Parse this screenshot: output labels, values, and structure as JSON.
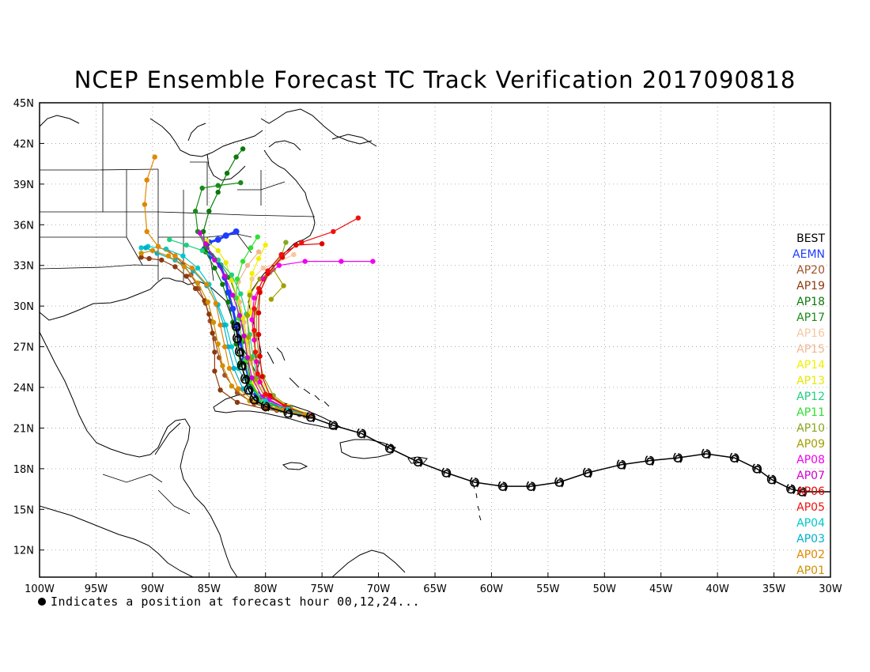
{
  "title": "NCEP Ensemble Forecast TC Track Verification 2017090818",
  "footnote": "Indicates a position at forecast hour 00,12,24...",
  "axes": {
    "lon_ticks": [
      "100W",
      "95W",
      "90W",
      "85W",
      "80W",
      "75W",
      "70W",
      "65W",
      "60W",
      "55W",
      "50W",
      "45W",
      "40W",
      "35W",
      "30W"
    ],
    "lat_ticks": [
      "45N",
      "42N",
      "39N",
      "36N",
      "33N",
      "30N",
      "27N",
      "24N",
      "21N",
      "18N",
      "15N",
      "12N"
    ]
  },
  "legend": [
    {
      "label": "BEST",
      "color": "#000000"
    },
    {
      "label": "AEMN",
      "color": "#1e3cff"
    },
    {
      "label": "AP20",
      "color": "#a0522d"
    },
    {
      "label": "AP19",
      "color": "#8b3a0f"
    },
    {
      "label": "AP18",
      "color": "#0a7a0a"
    },
    {
      "label": "AP17",
      "color": "#1a8a1a"
    },
    {
      "label": "AP16",
      "color": "#f5c8a0"
    },
    {
      "label": "AP15",
      "color": "#f0b890"
    },
    {
      "label": "AP14",
      "color": "#f0f000"
    },
    {
      "label": "AP13",
      "color": "#e8e800"
    },
    {
      "label": "AP12",
      "color": "#20d080"
    },
    {
      "label": "AP11",
      "color": "#30e030"
    },
    {
      "label": "AP10",
      "color": "#88a820"
    },
    {
      "label": "AP09",
      "color": "#a0a000"
    },
    {
      "label": "AP08",
      "color": "#f000f0"
    },
    {
      "label": "AP07",
      "color": "#d000d0"
    },
    {
      "label": "AP06",
      "color": "#e00000"
    },
    {
      "label": "AP05",
      "color": "#f01010"
    },
    {
      "label": "AP04",
      "color": "#00c8c8"
    },
    {
      "label": "AP03",
      "color": "#00b0d0"
    },
    {
      "label": "AP02",
      "color": "#e08800"
    },
    {
      "label": "AP01",
      "color": "#d09000"
    }
  ],
  "best_track": [
    [
      -32.5,
      16.3
    ],
    [
      -33.5,
      16.5
    ],
    [
      -35.2,
      17.2
    ],
    [
      -36.5,
      18.0
    ],
    [
      -38.5,
      18.8
    ],
    [
      -41.0,
      19.1
    ],
    [
      -43.5,
      18.8
    ],
    [
      -46.0,
      18.6
    ],
    [
      -48.5,
      18.3
    ],
    [
      -51.5,
      17.7
    ],
    [
      -54.0,
      17.0
    ],
    [
      -56.5,
      16.7
    ],
    [
      -59.0,
      16.7
    ],
    [
      -61.5,
      17.0
    ],
    [
      -64.0,
      17.7
    ],
    [
      -66.5,
      18.5
    ],
    [
      -69.0,
      19.5
    ],
    [
      -71.5,
      20.6
    ],
    [
      -74.0,
      21.2
    ],
    [
      -76.0,
      21.8
    ],
    [
      -78.0,
      22.1
    ],
    [
      -80.0,
      22.6
    ],
    [
      -81.0,
      23.1
    ],
    [
      -81.5,
      23.8
    ],
    [
      -81.8,
      24.6
    ],
    [
      -82.1,
      25.6
    ],
    [
      -82.3,
      26.6
    ],
    [
      -82.5,
      27.6
    ],
    [
      -82.6,
      28.5
    ]
  ],
  "ensemble_tracks": [
    {
      "color": "#1e3cff",
      "points": [
        [
          -76.0,
          21.9
        ],
        [
          -78.0,
          22.3
        ],
        [
          -79.5,
          22.8
        ],
        [
          -80.8,
          23.5
        ],
        [
          -81.5,
          24.7
        ],
        [
          -81.9,
          26.0
        ],
        [
          -82.2,
          27.3
        ],
        [
          -82.6,
          28.6
        ],
        [
          -82.9,
          29.8
        ],
        [
          -83.3,
          31.0
        ],
        [
          -83.6,
          32.1
        ],
        [
          -84.0,
          33.0
        ],
        [
          -84.8,
          33.7
        ],
        [
          -85.4,
          34.2
        ],
        [
          -85.0,
          34.7
        ],
        [
          -84.2,
          34.9
        ],
        [
          -83.5,
          35.2
        ],
        [
          -82.6,
          35.5
        ]
      ]
    },
    {
      "color": "#a0522d",
      "points": [
        [
          -76.5,
          21.9
        ],
        [
          -79.0,
          22.3
        ],
        [
          -81.0,
          22.8
        ],
        [
          -82.5,
          23.6
        ],
        [
          -83.6,
          24.9
        ],
        [
          -84.1,
          26.2
        ],
        [
          -84.5,
          27.6
        ],
        [
          -84.9,
          28.9
        ],
        [
          -85.3,
          30.2
        ],
        [
          -85.9,
          31.3
        ],
        [
          -86.6,
          32.3
        ],
        [
          -87.3,
          33.1
        ],
        [
          -88.0,
          33.7
        ],
        [
          -88.8,
          34.2
        ]
      ]
    },
    {
      "color": "#8b3a0f",
      "points": [
        [
          -77.0,
          22.0
        ],
        [
          -80.0,
          22.4
        ],
        [
          -82.5,
          22.9
        ],
        [
          -84.0,
          23.8
        ],
        [
          -84.5,
          25.2
        ],
        [
          -84.5,
          26.6
        ],
        [
          -84.7,
          28.0
        ],
        [
          -85.0,
          29.4
        ],
        [
          -85.4,
          30.4
        ],
        [
          -86.2,
          31.3
        ],
        [
          -87.0,
          32.2
        ],
        [
          -88.0,
          32.9
        ],
        [
          -89.2,
          33.4
        ],
        [
          -90.3,
          33.5
        ],
        [
          -91.0,
          33.6
        ]
      ]
    },
    {
      "color": "#0a7a0a",
      "points": [
        [
          -76.0,
          22.0
        ],
        [
          -78.0,
          22.4
        ],
        [
          -80.2,
          23.0
        ],
        [
          -81.5,
          24.2
        ],
        [
          -82.2,
          25.7
        ],
        [
          -82.6,
          27.2
        ],
        [
          -82.9,
          28.8
        ],
        [
          -83.3,
          30.3
        ],
        [
          -83.8,
          31.6
        ],
        [
          -84.5,
          32.8
        ],
        [
          -85.3,
          34.0
        ],
        [
          -85.5,
          35.5
        ],
        [
          -85.0,
          37.0
        ],
        [
          -84.2,
          38.4
        ],
        [
          -83.4,
          39.8
        ],
        [
          -82.6,
          41.0
        ],
        [
          -82.0,
          41.6
        ]
      ]
    },
    {
      "color": "#1a8a1a",
      "points": [
        [
          -76.0,
          21.9
        ],
        [
          -78.5,
          22.4
        ],
        [
          -80.4,
          23.1
        ],
        [
          -81.3,
          24.4
        ],
        [
          -81.6,
          25.9
        ],
        [
          -81.8,
          27.4
        ],
        [
          -82.1,
          29.0
        ],
        [
          -82.5,
          30.6
        ],
        [
          -83.2,
          32.1
        ],
        [
          -84.2,
          33.4
        ],
        [
          -85.3,
          34.4
        ],
        [
          -86.0,
          35.5
        ],
        [
          -86.2,
          37.0
        ],
        [
          -85.6,
          38.7
        ],
        [
          -84.2,
          38.9
        ],
        [
          -82.2,
          39.1
        ]
      ]
    },
    {
      "color": "#f5c8a0",
      "points": [
        [
          -76.2,
          22.0
        ],
        [
          -78.3,
          22.5
        ],
        [
          -80.0,
          23.3
        ],
        [
          -80.8,
          24.6
        ],
        [
          -81.0,
          26.1
        ],
        [
          -80.9,
          27.7
        ],
        [
          -81.0,
          29.3
        ],
        [
          -81.3,
          30.8
        ],
        [
          -81.2,
          32.0
        ],
        [
          -80.2,
          32.8
        ],
        [
          -79.0,
          33.2
        ],
        [
          -77.5,
          33.8
        ]
      ]
    },
    {
      "color": "#f0b890",
      "points": [
        [
          -76.0,
          21.9
        ],
        [
          -78.0,
          22.3
        ],
        [
          -79.8,
          23.0
        ],
        [
          -80.8,
          24.3
        ],
        [
          -81.3,
          25.8
        ],
        [
          -81.6,
          27.3
        ],
        [
          -81.9,
          28.8
        ],
        [
          -82.3,
          30.3
        ],
        [
          -82.4,
          31.8
        ],
        [
          -81.6,
          33.0
        ],
        [
          -80.6,
          34.0
        ]
      ]
    },
    {
      "color": "#f0f000",
      "points": [
        [
          -76.0,
          22.0
        ],
        [
          -78.0,
          22.6
        ],
        [
          -79.6,
          23.4
        ],
        [
          -80.5,
          24.7
        ],
        [
          -80.9,
          26.3
        ],
        [
          -81.1,
          27.9
        ],
        [
          -81.3,
          29.5
        ],
        [
          -81.4,
          31.0
        ],
        [
          -81.2,
          32.4
        ],
        [
          -80.6,
          33.5
        ],
        [
          -80.0,
          34.5
        ]
      ]
    },
    {
      "color": "#e8e800",
      "points": [
        [
          -76.0,
          21.9
        ],
        [
          -78.4,
          22.3
        ],
        [
          -80.3,
          23.0
        ],
        [
          -81.2,
          24.4
        ],
        [
          -81.5,
          26.0
        ],
        [
          -81.7,
          27.5
        ],
        [
          -82.0,
          29.1
        ],
        [
          -82.5,
          30.6
        ],
        [
          -83.0,
          31.9
        ],
        [
          -83.5,
          33.2
        ],
        [
          -84.2,
          34.1
        ],
        [
          -85.2,
          34.8
        ]
      ]
    },
    {
      "color": "#20d080",
      "points": [
        [
          -76.0,
          21.9
        ],
        [
          -78.0,
          22.5
        ],
        [
          -79.8,
          23.4
        ],
        [
          -80.7,
          24.8
        ],
        [
          -81.1,
          26.3
        ],
        [
          -81.4,
          27.9
        ],
        [
          -81.7,
          29.4
        ],
        [
          -82.2,
          30.9
        ],
        [
          -83.0,
          32.3
        ],
        [
          -84.2,
          33.4
        ],
        [
          -85.6,
          34.1
        ],
        [
          -87.0,
          34.5
        ],
        [
          -88.5,
          34.9
        ]
      ]
    },
    {
      "color": "#30e030",
      "points": [
        [
          -76.2,
          22.0
        ],
        [
          -78.6,
          22.4
        ],
        [
          -80.5,
          23.1
        ],
        [
          -81.4,
          24.5
        ],
        [
          -81.8,
          26.0
        ],
        [
          -82.1,
          27.6
        ],
        [
          -82.4,
          29.1
        ],
        [
          -82.6,
          30.6
        ],
        [
          -82.5,
          32.0
        ],
        [
          -82.0,
          33.3
        ],
        [
          -81.3,
          34.3
        ],
        [
          -80.7,
          35.1
        ]
      ]
    },
    {
      "color": "#88a820",
      "points": [
        [
          -76.0,
          21.9
        ],
        [
          -77.8,
          22.5
        ],
        [
          -79.3,
          23.4
        ],
        [
          -80.2,
          24.8
        ],
        [
          -80.6,
          26.3
        ],
        [
          -80.8,
          27.9
        ],
        [
          -80.8,
          29.5
        ],
        [
          -80.5,
          31.1
        ],
        [
          -79.6,
          32.5
        ],
        [
          -78.6,
          33.7
        ],
        [
          -78.2,
          34.7
        ]
      ]
    },
    {
      "color": "#a0a000",
      "points": [
        [
          -76.0,
          21.9
        ],
        [
          -78.2,
          22.4
        ],
        [
          -80.0,
          23.2
        ],
        [
          -80.9,
          24.6
        ],
        [
          -81.3,
          26.1
        ],
        [
          -81.5,
          27.7
        ],
        [
          -81.6,
          29.3
        ],
        [
          -81.4,
          30.8
        ],
        [
          -80.5,
          32.0
        ],
        [
          -79.3,
          32.7
        ],
        [
          -78.4,
          31.5
        ],
        [
          -79.5,
          30.5
        ]
      ]
    },
    {
      "color": "#f000f0",
      "points": [
        [
          -76.0,
          21.9
        ],
        [
          -78.0,
          22.4
        ],
        [
          -79.7,
          23.1
        ],
        [
          -80.5,
          24.4
        ],
        [
          -80.8,
          25.9
        ],
        [
          -81.0,
          27.5
        ],
        [
          -81.2,
          29.0
        ],
        [
          -81.0,
          30.6
        ],
        [
          -80.2,
          32.0
        ],
        [
          -78.8,
          33.0
        ],
        [
          -76.5,
          33.3
        ],
        [
          -73.3,
          33.3
        ],
        [
          -70.5,
          33.3
        ]
      ]
    },
    {
      "color": "#d000d0",
      "points": [
        [
          -76.0,
          22.0
        ],
        [
          -78.4,
          22.5
        ],
        [
          -80.3,
          23.3
        ],
        [
          -81.2,
          24.7
        ],
        [
          -81.6,
          26.2
        ],
        [
          -81.9,
          27.8
        ],
        [
          -82.3,
          29.3
        ],
        [
          -82.9,
          30.8
        ],
        [
          -83.6,
          32.2
        ],
        [
          -84.5,
          33.4
        ],
        [
          -85.3,
          34.6
        ],
        [
          -85.8,
          35.4
        ]
      ]
    },
    {
      "color": "#e00000",
      "points": [
        [
          -76.0,
          21.9
        ],
        [
          -78.0,
          22.5
        ],
        [
          -79.6,
          23.4
        ],
        [
          -80.3,
          24.8
        ],
        [
          -80.5,
          26.3
        ],
        [
          -80.6,
          27.9
        ],
        [
          -80.6,
          29.5
        ],
        [
          -80.5,
          31.0
        ],
        [
          -79.8,
          32.4
        ],
        [
          -78.5,
          33.6
        ],
        [
          -77.3,
          34.5
        ],
        [
          -75.0,
          34.6
        ]
      ]
    },
    {
      "color": "#f01010",
      "points": [
        [
          -76.0,
          21.9
        ],
        [
          -78.3,
          22.6
        ],
        [
          -80.0,
          23.5
        ],
        [
          -80.7,
          25.0
        ],
        [
          -80.9,
          26.6
        ],
        [
          -81.0,
          28.2
        ],
        [
          -81.0,
          29.8
        ],
        [
          -80.6,
          31.3
        ],
        [
          -79.8,
          32.6
        ],
        [
          -78.6,
          33.8
        ],
        [
          -76.8,
          34.7
        ],
        [
          -74.0,
          35.5
        ],
        [
          -71.8,
          36.5
        ]
      ]
    },
    {
      "color": "#00c8c8",
      "points": [
        [
          -76.0,
          21.9
        ],
        [
          -78.0,
          22.4
        ],
        [
          -80.0,
          23.0
        ],
        [
          -81.5,
          24.0
        ],
        [
          -82.4,
          25.4
        ],
        [
          -83.0,
          27.0
        ],
        [
          -83.5,
          28.6
        ],
        [
          -84.2,
          30.1
        ],
        [
          -85.0,
          31.6
        ],
        [
          -86.0,
          32.8
        ],
        [
          -87.3,
          33.7
        ],
        [
          -88.8,
          34.2
        ],
        [
          -90.4,
          34.4
        ],
        [
          -91.0,
          34.3
        ]
      ]
    },
    {
      "color": "#00b0d0",
      "points": [
        [
          -76.3,
          21.9
        ],
        [
          -78.6,
          22.3
        ],
        [
          -80.6,
          22.9
        ],
        [
          -82.0,
          23.9
        ],
        [
          -82.8,
          25.4
        ],
        [
          -83.3,
          27.0
        ],
        [
          -83.7,
          28.6
        ],
        [
          -84.3,
          30.1
        ],
        [
          -85.2,
          31.5
        ],
        [
          -86.4,
          32.6
        ],
        [
          -88.0,
          33.4
        ],
        [
          -89.6,
          33.9
        ],
        [
          -90.6,
          34.3
        ]
      ]
    },
    {
      "color": "#e08800",
      "points": [
        [
          -76.0,
          21.9
        ],
        [
          -78.5,
          22.3
        ],
        [
          -80.8,
          22.9
        ],
        [
          -82.4,
          23.9
        ],
        [
          -83.2,
          25.4
        ],
        [
          -83.6,
          27.0
        ],
        [
          -84.0,
          28.6
        ],
        [
          -84.4,
          30.2
        ],
        [
          -85.2,
          31.6
        ],
        [
          -86.5,
          32.8
        ],
        [
          -88.0,
          33.7
        ],
        [
          -89.5,
          34.4
        ],
        [
          -90.5,
          35.5
        ],
        [
          -90.7,
          37.5
        ],
        [
          -90.5,
          39.3
        ],
        [
          -89.8,
          41.0
        ]
      ]
    },
    {
      "color": "#d09000",
      "points": [
        [
          -76.5,
          22.0
        ],
        [
          -79.0,
          22.4
        ],
        [
          -81.4,
          23.0
        ],
        [
          -83.0,
          24.1
        ],
        [
          -83.8,
          25.6
        ],
        [
          -84.2,
          27.2
        ],
        [
          -84.6,
          28.8
        ],
        [
          -85.1,
          30.3
        ],
        [
          -86.0,
          31.7
        ],
        [
          -87.2,
          32.9
        ],
        [
          -88.6,
          33.7
        ],
        [
          -90.0,
          34.1
        ],
        [
          -91.0,
          33.9
        ]
      ]
    }
  ]
}
